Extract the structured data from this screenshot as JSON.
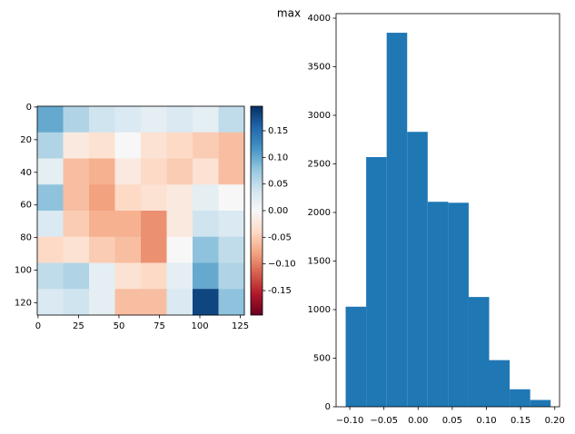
{
  "chart_data": [
    {
      "type": "heatmap",
      "colormap": "RdBu",
      "z": [
        [
          0.1,
          0.06,
          0.04,
          0.03,
          0.02,
          0.03,
          0.02,
          0.05
        ],
        [
          0.06,
          -0.02,
          -0.03,
          0.0,
          -0.03,
          -0.04,
          -0.05,
          -0.06
        ],
        [
          0.02,
          -0.06,
          -0.07,
          -0.02,
          -0.04,
          -0.05,
          -0.03,
          -0.06
        ],
        [
          0.08,
          -0.06,
          -0.08,
          -0.04,
          -0.03,
          -0.02,
          0.02,
          0.0
        ],
        [
          0.03,
          -0.05,
          -0.07,
          -0.07,
          -0.09,
          -0.02,
          0.04,
          0.03
        ],
        [
          -0.04,
          -0.03,
          -0.05,
          -0.06,
          -0.09,
          0.0,
          0.08,
          0.05
        ],
        [
          0.05,
          0.06,
          0.02,
          -0.03,
          -0.04,
          0.02,
          0.1,
          0.06
        ],
        [
          0.03,
          0.04,
          0.02,
          -0.06,
          -0.06,
          0.03,
          0.18,
          0.08
        ]
      ],
      "xlim": [
        -0.5,
        127.5
      ],
      "ylim": [
        127.5,
        -0.5
      ],
      "xticks": [
        0,
        25,
        50,
        75,
        100,
        125
      ],
      "yticks": [
        0,
        20,
        40,
        60,
        80,
        100,
        120
      ],
      "clim": [
        -0.196,
        0.196
      ],
      "cticks": [
        -0.15,
        {
          "value": -0.1,
          "label": "−0.10"
        },
        -0.05,
        {
          "value": 0,
          "label": "0.00"
        },
        0.05,
        {
          "value": 0.1,
          "label": "0.10"
        },
        0.15
      ]
    },
    {
      "type": "histogram",
      "title": "max",
      "color": "#1f77b4",
      "bins": [
        -0.106,
        -0.076,
        -0.046,
        -0.016,
        0.014,
        0.044,
        0.074,
        0.104,
        0.134,
        0.164,
        0.194
      ],
      "values": [
        1030,
        2570,
        3850,
        2830,
        2110,
        2100,
        1130,
        480,
        180,
        70
      ],
      "xlim": [
        -0.12,
        0.207
      ],
      "ylim": [
        0,
        4047
      ],
      "xticks": [
        {
          "value": -0.1,
          "label": "−0.10"
        },
        {
          "value": -0.05,
          "label": "−0.05"
        },
        {
          "value": 0,
          "label": "0.00"
        },
        0.05,
        {
          "value": 0.1,
          "label": "0.10"
        },
        0.15,
        {
          "value": 0.2,
          "label": "0.20"
        }
      ],
      "yticks": [
        0,
        500,
        1000,
        1500,
        2000,
        2500,
        3000,
        3500,
        4000
      ]
    }
  ]
}
